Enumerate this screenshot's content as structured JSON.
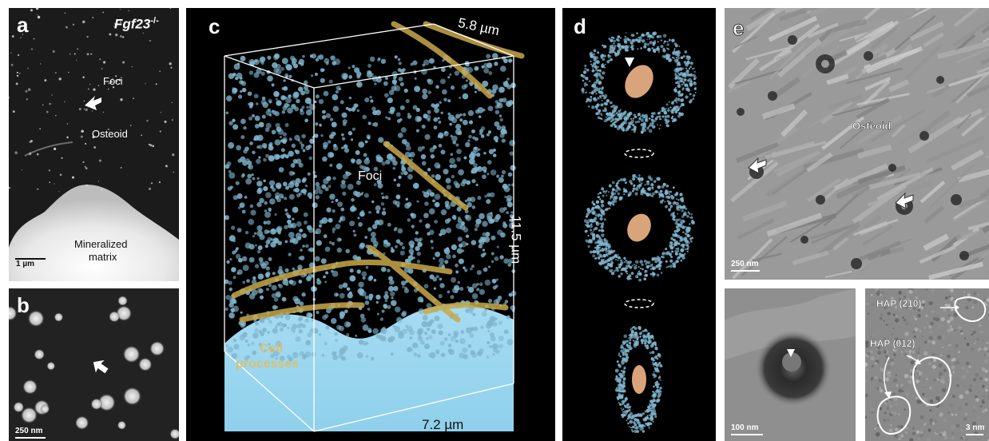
{
  "panels": {
    "a": {
      "label": "a",
      "genotype_base": "Fgf23",
      "genotype_sup": "-/-",
      "foci_label": "Foci",
      "osteoid_label": "Osteoid",
      "mineral_label_line1": "Mineralized",
      "mineral_label_line2": "matrix",
      "scale_bar": "1 µm"
    },
    "b": {
      "label": "b",
      "scale_bar": "250 nm"
    },
    "c": {
      "label": "c",
      "dim_top": "5.8 µm",
      "dim_side": "11.5 µm",
      "dim_bottom": "7.2 µm",
      "foci_label": "Foci",
      "cell_label_line1": "Cell",
      "cell_label_line2": "processes"
    },
    "d": {
      "label": "d"
    },
    "e": {
      "label": "e",
      "osteoid_label": "Osteoid",
      "scale_bar": "250 nm",
      "inset1_scale_bar": "100 nm",
      "hap1_label": "HAP (210)",
      "hap2_label": "HAP (012)",
      "inset2_scale_bar": "3 nm"
    }
  },
  "colors": {
    "foci_blue": "#7fb4cc",
    "cell_process_gold": "#c8a84a",
    "mineral_blue": "#9ed6ee",
    "vesicle_orange": "#d9a47a"
  }
}
